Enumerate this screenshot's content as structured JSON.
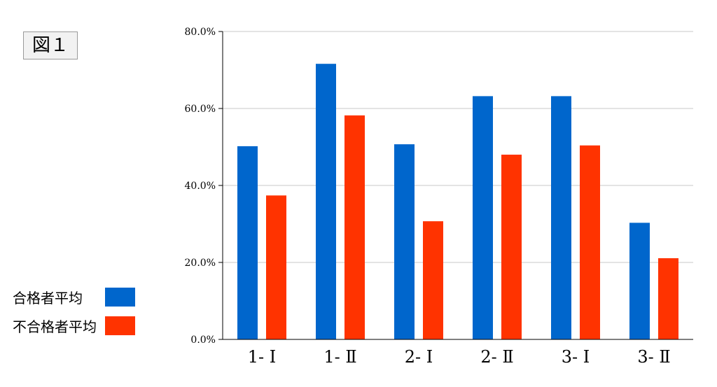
{
  "figure_label": "図１",
  "colors": {
    "series1": "#0066cc",
    "series2": "#ff3300",
    "grid": "#c8c8c8",
    "axis": "#000000"
  },
  "chart_data": {
    "type": "bar",
    "categories": [
      "1- Ⅰ",
      "1- Ⅱ",
      "2- Ⅰ",
      "2- Ⅱ",
      "3- Ⅰ",
      "3- Ⅱ"
    ],
    "series": [
      {
        "name": "合格者平均",
        "values": [
          50.2,
          71.6,
          50.7,
          63.2,
          63.2,
          30.3
        ]
      },
      {
        "name": "不合格者平均",
        "values": [
          37.4,
          58.2,
          30.7,
          48.0,
          50.4,
          21.1
        ]
      }
    ],
    "ylim": [
      0,
      80
    ],
    "y_ticks": [
      "0.0%",
      "20.0%",
      "40.0%",
      "60.0%",
      "80.0%"
    ],
    "grid": true,
    "legend_position": "bottom-left",
    "title": "",
    "xlabel": "",
    "ylabel": ""
  }
}
